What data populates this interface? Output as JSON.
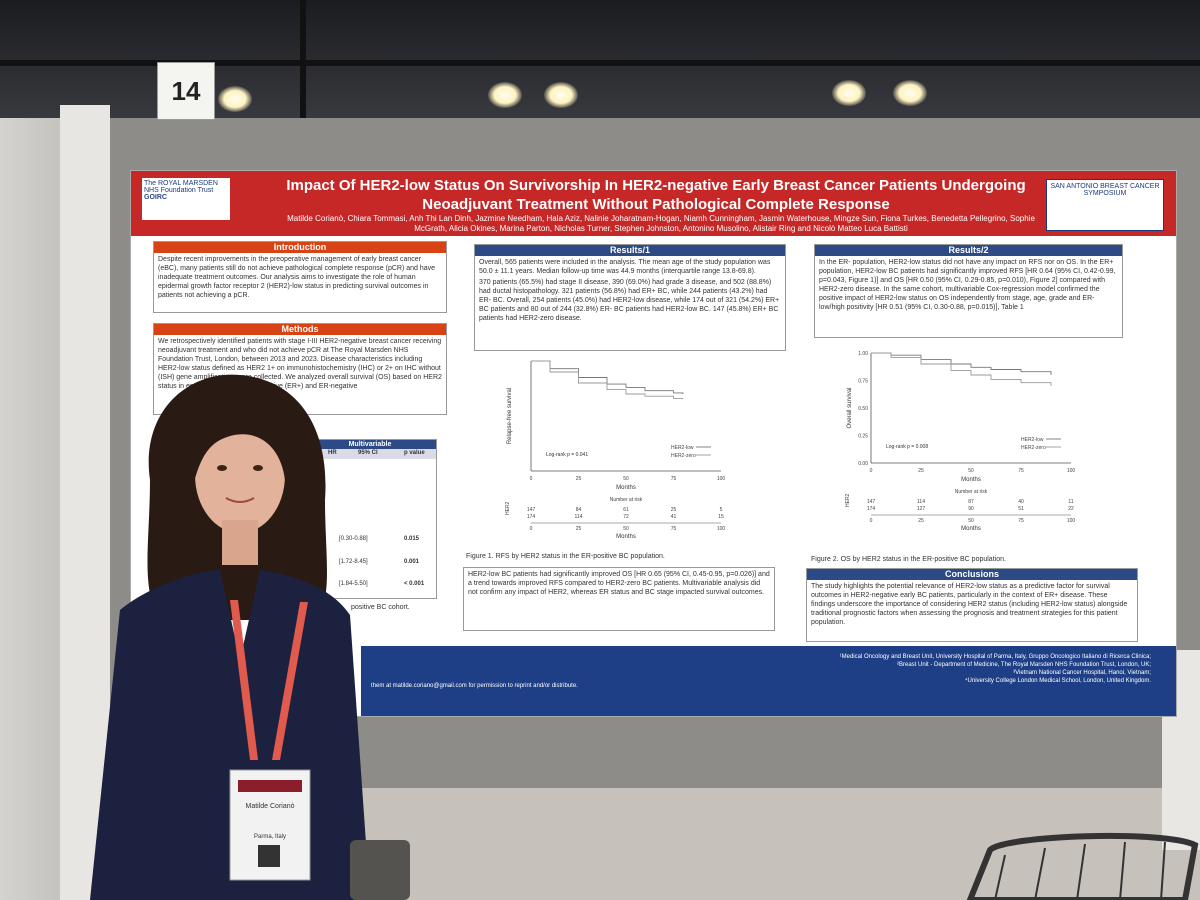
{
  "booth": {
    "number": "14"
  },
  "poster": {
    "title": "Impact Of HER2-low Status On Survivorship In HER2-negative Early Breast Cancer Patients Undergoing Neoadjuvant Treatment Without Pathological Complete Response",
    "authors": "Matilde Corianò, Chiara Tommasi, Anh Thi Lan Dinh, Jazmine Needham, Hala Aziz, Nalinie Joharatnam-Hogan, Niamh Cunningham, Jasmin Waterhouse, Mingze Sun, Fiona Turkes, Benedetta Pellegrino, Sophie McGrath, Alicia Okines, Marina Parton, Nicholas Turner, Stephen Johnston, Antonino Musolino, Alistair Ring and Nicolò Matteo Luca Battisti",
    "logo_left": "The ROYAL MARSDEN NHS Foundation Trust",
    "logo_left_2": "GOIRC",
    "logo_right": "SAN ANTONIO BREAST CANCER SYMPOSIUM",
    "intro": {
      "heading": "Introduction",
      "text": "Despite recent improvements in the preoperative management of early breast cancer (eBC), many patients still do not achieve pathological complete response (pCR) and have inadequate treatment outcomes. Our analysis aims to investigate the role of human epidermal growth factor receptor 2 (HER2)-low status in predicting survival outcomes in patients not achieving a pCR."
    },
    "methods": {
      "heading": "Methods",
      "text": "We retrospectively identified patients with stage I-III HER2-negative breast cancer receiving neoadjuvant treatment and who did not achieve pCR at The Royal Marsden NHS Foundation Trust, London, between 2013 and 2023. Disease characteristics including HER2-low status defined as HER2 1+ on immunohistochemistry (IHC) or 2+ on IHC without (ISH) gene amplification, were collected. We analyzed overall survival (OS) based on HER2 status in estrogen receptor (ER) positive (ER+) and ER-negative"
    },
    "table": {
      "col_multivariable": "Multivariable",
      "col_hr": "HR",
      "col_ci": "95% CI",
      "col_p": "p value",
      "rows": [
        {
          "ci": "[0.30-0.88]",
          "p": "0.015"
        },
        {
          "ci": "[1.72-8.45]",
          "p": "0.001"
        },
        {
          "ci": "[1.84-5.50]",
          "p": "< 0.001"
        }
      ],
      "caption": "positive BC cohort."
    },
    "results1": {
      "heading": "Results/1",
      "text1": "Overall, 565 patients were included in the analysis. The mean age of the study population was 50.0 ± 11.1 years. Median follow-up time was 44.9 months (interquartile range 13.8-69.8).",
      "text2": "370 patients (65.5%) had stage II disease, 390 (69.0%) had grade 3 disease, and 502 (88.8%) had ductal histopathology. 321 patients (56.8%) had ER+ BC, while 244 patients (43.2%) had ER- BC. Overall, 254 patients (45.0%) had HER2-low disease, while 174 out of 321 (54.2%) ER+ BC patients and 80 out of 244 (32.8%) ER- BC patients had HER2-low BC. 147 (45.8%) ER+ BC patients had HER2-zero disease.",
      "figure_caption": "Figure 1. RFS by HER2 status in the ER-positive BC population.",
      "bottom_text": "HER2-low BC patients had significantly improved OS [HR 0.65 (95% CI, 0.45-0.95, p=0.026)] and a trend towards improved RFS compared to HER2-zero BC patients. Multivariable analysis did not confirm any impact of HER2, whereas ER status and BC stage impacted survival outcomes."
    },
    "results2": {
      "heading": "Results/2",
      "text": "In the ER- population, HER2-low status did not have any impact on RFS nor on OS. In the ER+ population, HER2-low BC patients had significantly improved RFS [HR 0.64 (95% CI, 0.42-0.99, p=0.043, Figure 1)] and OS [HR 0.50 (95% CI, 0.29-0.85, p=0.010), Figure 2] compared with HER2-zero disease. In the same cohort, multivariable Cox-regression model confirmed the positive impact of HER2-low status on OS independently from stage, age, grade and ER-low/high positivity [HR 0.51 (95% CI, 0.30-0.88, p=0.015)], Table 1",
      "figure_caption": "Figure 2. OS by HER2 status in the ER-positive BC population."
    },
    "conclusions": {
      "heading": "Conclusions",
      "text": "The study highlights the potential relevance of HER2-low status as a predictive factor for survival outcomes in HER2-negative early BC patients, particularly in the context of ER+ disease. These findings underscore the importance of considering HER2 status (including HER2-low status) alongside traditional prognostic factors when assessing the prognosis and treatment strategies for this patient population."
    },
    "affiliations": [
      "¹Medical Oncology and Breast Unit, University Hospital of Parma, Italy, Gruppo Oncologico Italiano di Ricerca Clinica;",
      "²Breast Unit - Department of Medicine, The Royal Marsden NHS Foundation Trust, London, UK;",
      "³Vietnam National Cancer Hospital, Hanoi, Vietnam;",
      "⁴University College London Medical School, London, United Kingdom."
    ],
    "email": "them at matilde.coriano@gmail.com for permission to reprint and/or distribute."
  },
  "badge": {
    "name": "Matilde Corianò",
    "city": "Parma, Italy"
  },
  "chart_data": [
    {
      "type": "line",
      "xlabel": "Months",
      "ylabel": "Relapse-free survival",
      "annotation": "Log-rank p = 0.041",
      "x_ticks": [
        "0",
        "25",
        "50",
        "75",
        "100"
      ],
      "series": [
        {
          "name": "HER2-low",
          "x": [
            0,
            10,
            25,
            40,
            50,
            60,
            75,
            80
          ],
          "values": [
            1.0,
            0.93,
            0.85,
            0.79,
            0.76,
            0.73,
            0.71,
            0.7
          ]
        },
        {
          "name": "HER2-zero",
          "x": [
            0,
            10,
            25,
            40,
            50,
            60,
            75,
            80
          ],
          "values": [
            1.0,
            0.9,
            0.8,
            0.74,
            0.7,
            0.68,
            0.66,
            0.66
          ]
        }
      ],
      "risk_table": {
        "title": "Number at risk",
        "row_label": "HER2",
        "rows": [
          [
            "147",
            "84",
            "61",
            "25",
            "5"
          ],
          [
            "174",
            "114",
            "72",
            "41",
            "15"
          ]
        ]
      }
    },
    {
      "type": "line",
      "xlabel": "Months",
      "ylabel": "Overall survival",
      "annotation": "Log-rank p = 0.008",
      "y_ticks": [
        "0.00",
        "0.25",
        "0.50",
        "0.75",
        "1.00"
      ],
      "x_ticks": [
        "0",
        "25",
        "50",
        "75",
        "100"
      ],
      "series": [
        {
          "name": "HER2-low",
          "x": [
            0,
            10,
            25,
            40,
            50,
            60,
            75,
            90
          ],
          "values": [
            1.0,
            0.98,
            0.94,
            0.9,
            0.87,
            0.85,
            0.83,
            0.8
          ]
        },
        {
          "name": "HER2-zero",
          "x": [
            0,
            10,
            25,
            40,
            50,
            60,
            75,
            90
          ],
          "values": [
            1.0,
            0.96,
            0.9,
            0.84,
            0.8,
            0.76,
            0.73,
            0.7
          ]
        }
      ],
      "risk_table": {
        "title": "Number at risk",
        "row_label": "HER2",
        "rows": [
          [
            "147",
            "114",
            "87",
            "40",
            "11"
          ],
          [
            "174",
            "127",
            "90",
            "51",
            "22"
          ]
        ]
      }
    }
  ]
}
